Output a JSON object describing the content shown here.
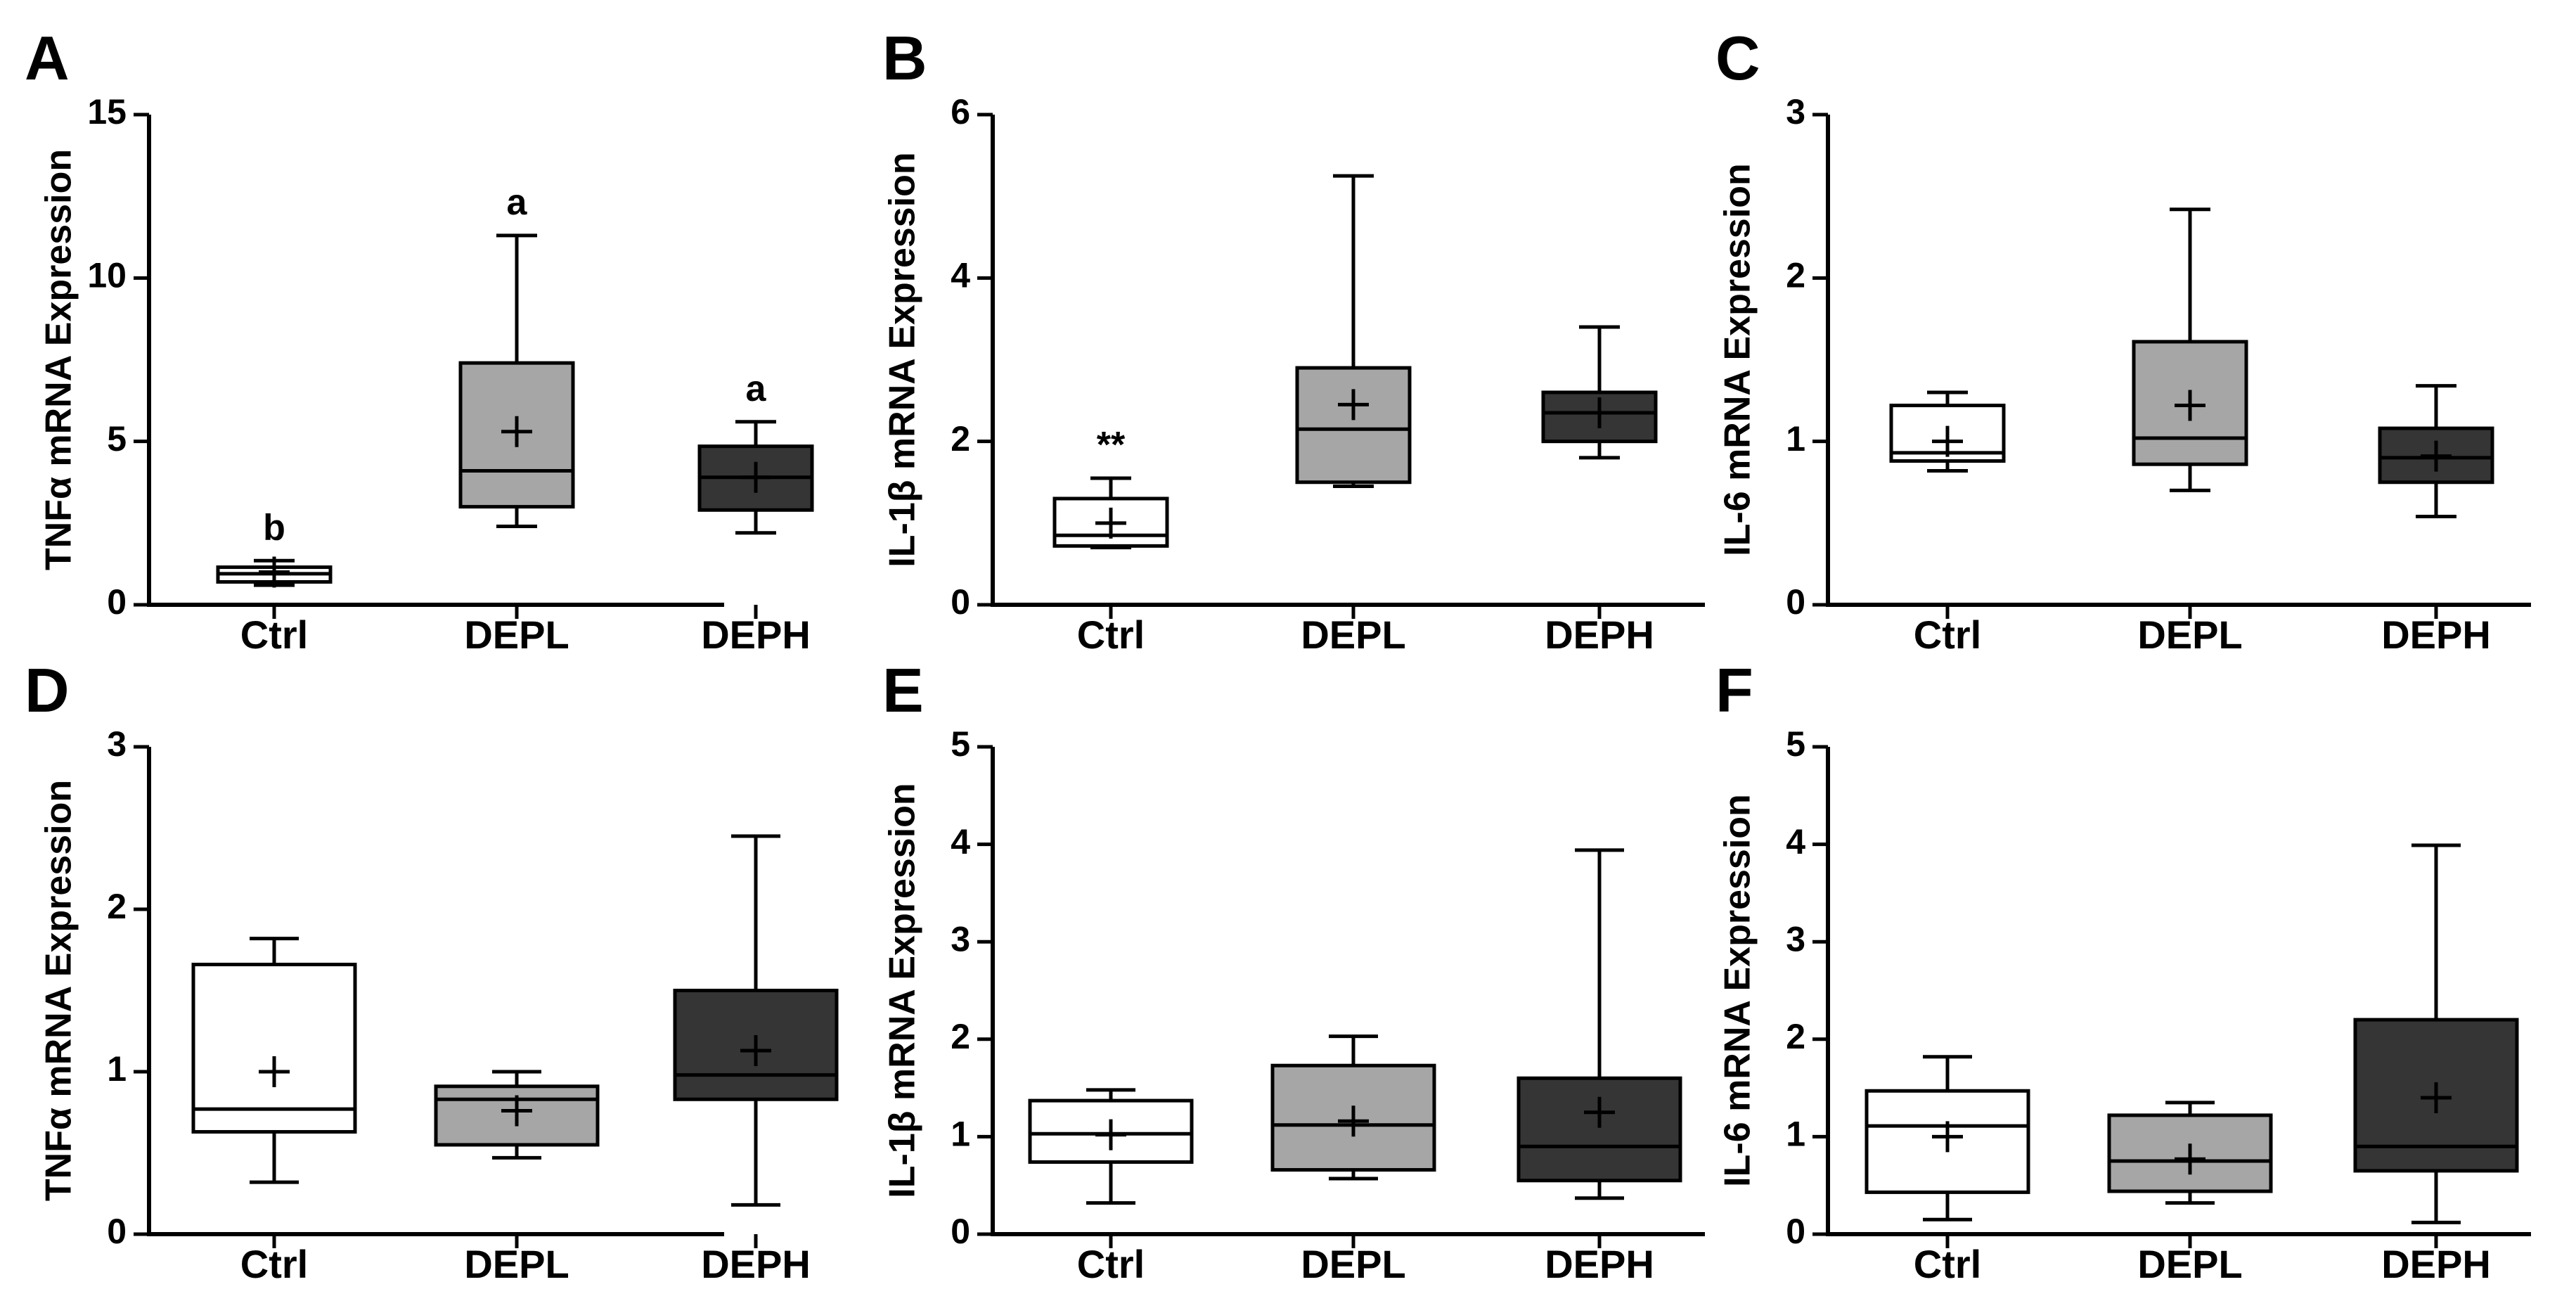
{
  "colors": {
    "ctrl": "#ffffff",
    "depl": "#a6a6a6",
    "deph": "#353535",
    "stroke": "#000000"
  },
  "chart_data": [
    {
      "panel": "A",
      "type": "box",
      "ylabel": "TNFα mRNA Expression",
      "ylim": [
        0,
        15
      ],
      "yticks": [
        "0",
        "5",
        "10",
        "15"
      ],
      "yticks_values": [
        0,
        5,
        10,
        15
      ],
      "categories": [
        "Ctrl",
        "DEPL",
        "DEPH"
      ],
      "boxes": [
        {
          "group": "Ctrl",
          "min": 0.6,
          "q1": 0.7,
          "median": 0.95,
          "q3": 1.15,
          "max": 1.35,
          "mean": 1.0,
          "annotation": "b"
        },
        {
          "group": "DEPL",
          "min": 2.4,
          "q1": 3.0,
          "median": 4.1,
          "q3": 7.4,
          "max": 11.3,
          "mean": 5.3,
          "annotation": "a"
        },
        {
          "group": "DEPH",
          "min": 2.2,
          "q1": 2.9,
          "median": 3.9,
          "q3": 4.85,
          "max": 5.6,
          "mean": 3.9,
          "annotation": "a"
        }
      ]
    },
    {
      "panel": "B",
      "type": "box",
      "ylabel": "IL-1β mRNA Expression",
      "ylim": [
        0,
        6
      ],
      "yticks": [
        "0",
        "2",
        "4",
        "6"
      ],
      "yticks_values": [
        0,
        2,
        4,
        6
      ],
      "categories": [
        "Ctrl",
        "DEPL",
        "DEPH"
      ],
      "boxes": [
        {
          "group": "Ctrl",
          "min": 0.7,
          "q1": 0.72,
          "median": 0.85,
          "q3": 1.3,
          "max": 1.55,
          "mean": 1.0,
          "annotation": "**"
        },
        {
          "group": "DEPL",
          "min": 1.45,
          "q1": 1.5,
          "median": 2.15,
          "q3": 2.9,
          "max": 5.25,
          "mean": 2.45,
          "annotation": ""
        },
        {
          "group": "DEPH",
          "min": 1.8,
          "q1": 2.0,
          "median": 2.35,
          "q3": 2.6,
          "max": 3.4,
          "mean": 2.35,
          "annotation": ""
        }
      ]
    },
    {
      "panel": "C",
      "type": "box",
      "ylabel": "IL-6 mRNA Expression",
      "ylim": [
        0,
        3
      ],
      "yticks": [
        "0",
        "1",
        "2",
        "3"
      ],
      "yticks_values": [
        0,
        1,
        2,
        3
      ],
      "categories": [
        "Ctrl",
        "DEPL",
        "DEPH"
      ],
      "boxes": [
        {
          "group": "Ctrl",
          "min": 0.82,
          "q1": 0.88,
          "median": 0.93,
          "q3": 1.22,
          "max": 1.3,
          "mean": 1.0,
          "annotation": ""
        },
        {
          "group": "DEPL",
          "min": 0.7,
          "q1": 0.86,
          "median": 1.02,
          "q3": 1.61,
          "max": 2.42,
          "mean": 1.22,
          "annotation": ""
        },
        {
          "group": "DEPH",
          "min": 0.54,
          "q1": 0.75,
          "median": 0.9,
          "q3": 1.08,
          "max": 1.34,
          "mean": 0.91,
          "annotation": ""
        }
      ]
    },
    {
      "panel": "D",
      "type": "box",
      "ylabel": "TNFα mRNA Expression",
      "ylim": [
        0,
        3
      ],
      "yticks": [
        "0",
        "1",
        "2",
        "3"
      ],
      "yticks_values": [
        0,
        1,
        2,
        3
      ],
      "categories": [
        "Ctrl",
        "DEPL",
        "DEPH"
      ],
      "boxes": [
        {
          "group": "Ctrl",
          "min": 0.32,
          "q1": 0.63,
          "median": 0.77,
          "q3": 1.66,
          "max": 1.82,
          "mean": 1.0,
          "annotation": ""
        },
        {
          "group": "DEPL",
          "min": 0.47,
          "q1": 0.55,
          "median": 0.83,
          "q3": 0.91,
          "max": 1.0,
          "mean": 0.76,
          "annotation": ""
        },
        {
          "group": "DEPH",
          "min": 0.18,
          "q1": 0.83,
          "median": 0.98,
          "q3": 1.5,
          "max": 2.45,
          "mean": 1.13,
          "annotation": ""
        }
      ]
    },
    {
      "panel": "E",
      "type": "box",
      "ylabel": "IL-1β mRNA Expression",
      "ylim": [
        0,
        5
      ],
      "yticks": [
        "0",
        "1",
        "2",
        "3",
        "4",
        "5"
      ],
      "yticks_values": [
        0,
        1,
        2,
        3,
        4,
        5
      ],
      "categories": [
        "Ctrl",
        "DEPL",
        "DEPH"
      ],
      "boxes": [
        {
          "group": "Ctrl",
          "min": 0.32,
          "q1": 0.74,
          "median": 1.03,
          "q3": 1.37,
          "max": 1.48,
          "mean": 1.02,
          "annotation": ""
        },
        {
          "group": "DEPL",
          "min": 0.57,
          "q1": 0.66,
          "median": 1.12,
          "q3": 1.73,
          "max": 2.03,
          "mean": 1.16,
          "annotation": ""
        },
        {
          "group": "DEPH",
          "min": 0.37,
          "q1": 0.55,
          "median": 0.9,
          "q3": 1.6,
          "max": 3.94,
          "mean": 1.25,
          "annotation": ""
        }
      ]
    },
    {
      "panel": "F",
      "type": "box",
      "ylabel": "IL-6 mRNA Expression",
      "ylim": [
        0,
        5
      ],
      "yticks": [
        "0",
        "1",
        "2",
        "3",
        "4",
        "5"
      ],
      "yticks_values": [
        0,
        1,
        2,
        3,
        4,
        5
      ],
      "categories": [
        "Ctrl",
        "DEPL",
        "DEPH"
      ],
      "boxes": [
        {
          "group": "Ctrl",
          "min": 0.15,
          "q1": 0.43,
          "median": 1.11,
          "q3": 1.47,
          "max": 1.82,
          "mean": 1.0,
          "annotation": ""
        },
        {
          "group": "DEPL",
          "min": 0.32,
          "q1": 0.44,
          "median": 0.75,
          "q3": 1.22,
          "max": 1.35,
          "mean": 0.77,
          "annotation": ""
        },
        {
          "group": "DEPH",
          "min": 0.12,
          "q1": 0.65,
          "median": 0.9,
          "q3": 2.2,
          "max": 3.99,
          "mean": 1.4,
          "annotation": ""
        }
      ]
    }
  ]
}
